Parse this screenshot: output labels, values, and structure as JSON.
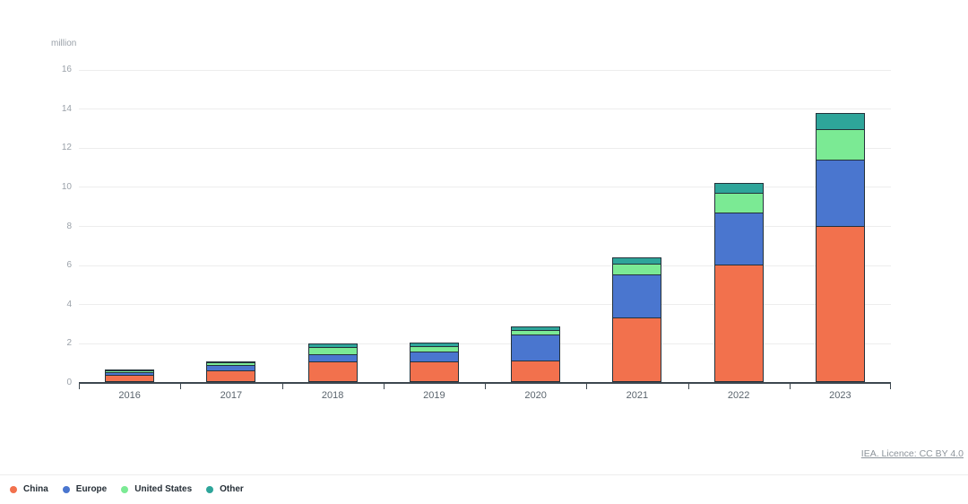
{
  "chart_data": {
    "type": "bar",
    "stacked": true,
    "unit_label": "million",
    "categories": [
      "2016",
      "2017",
      "2018",
      "2019",
      "2020",
      "2021",
      "2022",
      "2023"
    ],
    "series": [
      {
        "name": "China",
        "color": "#F2714D",
        "values": [
          0.35,
          0.6,
          1.05,
          1.05,
          1.1,
          3.3,
          6.0,
          8.0
        ]
      },
      {
        "name": "Europe",
        "color": "#4A76CF",
        "values": [
          0.2,
          0.3,
          0.4,
          0.55,
          1.4,
          2.25,
          2.7,
          3.4
        ]
      },
      {
        "name": "United States",
        "color": "#7BEA94",
        "values": [
          0.15,
          0.2,
          0.45,
          0.35,
          0.25,
          0.6,
          1.05,
          1.6
        ]
      },
      {
        "name": "Other",
        "color": "#2EA59A",
        "values": [
          0.05,
          0.1,
          0.2,
          0.2,
          0.25,
          0.35,
          0.55,
          0.9
        ]
      }
    ],
    "ylim": [
      0,
      16
    ],
    "yticks": [
      0,
      2,
      4,
      6,
      8,
      10,
      12,
      14,
      16
    ],
    "grid": "horizontal",
    "legend_position": "bottom-left"
  },
  "colors": {
    "axis": "#3d474f",
    "gridline": "#ededed",
    "y_tick_text": "#9aa1a9",
    "x_tick_text": "#5a646d",
    "segment_border": "#24323b",
    "legend_text": "#262f37",
    "footer_link": "#8d949b",
    "background": "#ffffff"
  },
  "footer": {
    "licence_text": "IEA. Licence: CC BY 4.0"
  }
}
